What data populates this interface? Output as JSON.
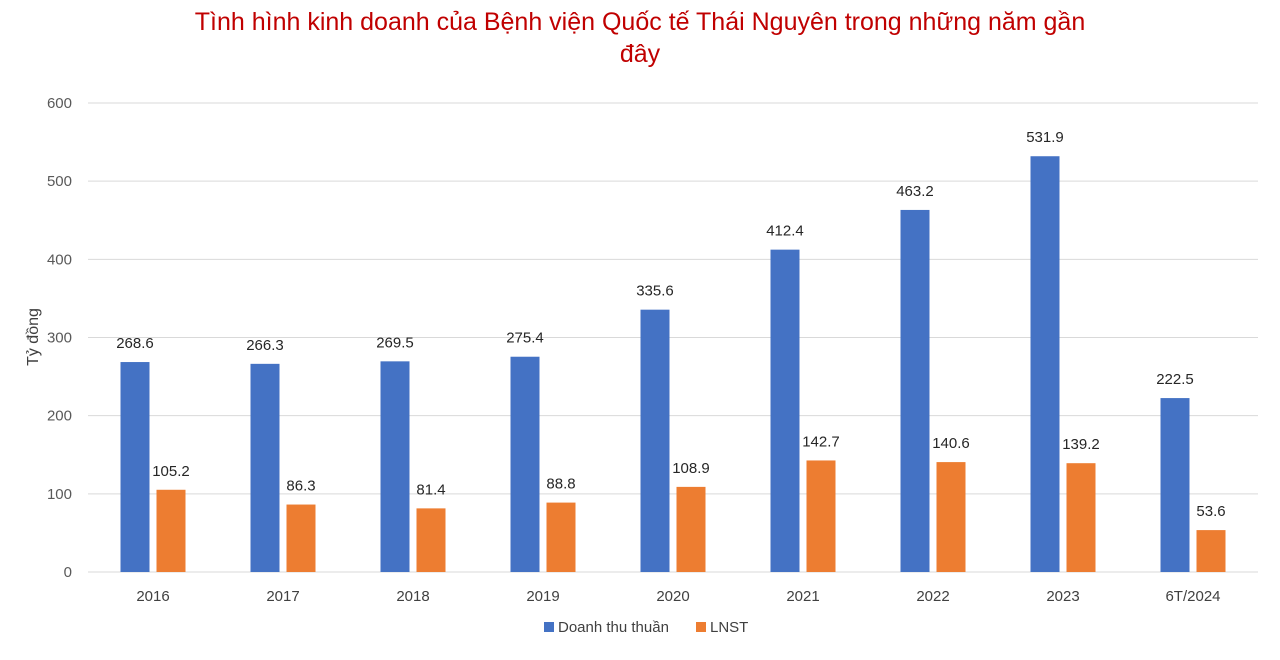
{
  "chart_data": {
    "type": "bar",
    "title_line1": "Tình hình kinh doanh của Bệnh viện Quốc tế Thái Nguyên trong những năm gần",
    "title_line2": "đây",
    "ylabel": "Tỷ đồng",
    "xlabel": "",
    "ylim": [
      0,
      600
    ],
    "yticks": [
      0,
      100,
      200,
      300,
      400,
      500,
      600
    ],
    "grid": true,
    "legend_position": "bottom",
    "categories": [
      "2016",
      "2017",
      "2018",
      "2019",
      "2020",
      "2021",
      "2022",
      "2023",
      "6T/2024"
    ],
    "series": [
      {
        "name": "Doanh thu thuần",
        "color": "#4472c4",
        "values": [
          268.6,
          266.3,
          269.5,
          275.4,
          335.6,
          412.4,
          463.2,
          531.9,
          222.5
        ]
      },
      {
        "name": "LNST",
        "color": "#ed7d31",
        "values": [
          105.2,
          86.3,
          81.4,
          88.8,
          108.9,
          142.7,
          140.6,
          139.2,
          53.6
        ]
      }
    ]
  }
}
